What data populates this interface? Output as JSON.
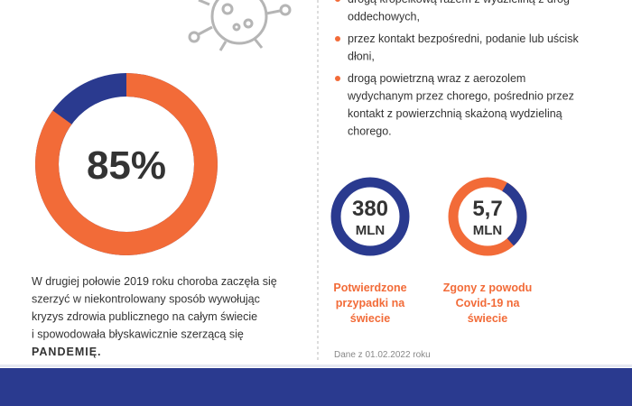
{
  "stat": {
    "value": 85,
    "label": "85%"
  },
  "description": {
    "lines": [
      "W drugiej połowie 2019 roku choroba zaczęła się",
      "szerzyć w niekontrolowany sposób wywołując",
      "kryzys zdrowia publicznego na całym świecie",
      "i spowodowała błyskawicznie szerzącą się"
    ],
    "highlight": "PANDEMIĘ."
  },
  "bullets": [
    [
      "drogą kropelkową razem z wydzieliną z dróg",
      "oddechowych,"
    ],
    [
      "przez kontakt bezpośredni, podanie lub uścisk",
      "dłoni,"
    ],
    [
      "drogą powietrzną wraz z aerozolem",
      "wydychanym przez chorego, pośrednio przez",
      "kontakt z powierzchnią skażoną wydzieliną",
      "chorego."
    ]
  ],
  "counters": [
    {
      "number": "380",
      "unit": "MLN",
      "caption": [
        "Potwierdzone",
        "przypadki na",
        "świecie"
      ]
    },
    {
      "number": "5,7",
      "unit": "MLN",
      "caption": [
        "Zgony z powodu",
        "Covid-19 na",
        "świecie"
      ]
    }
  ],
  "source": "Dane z 01.02.2022 roku"
}
